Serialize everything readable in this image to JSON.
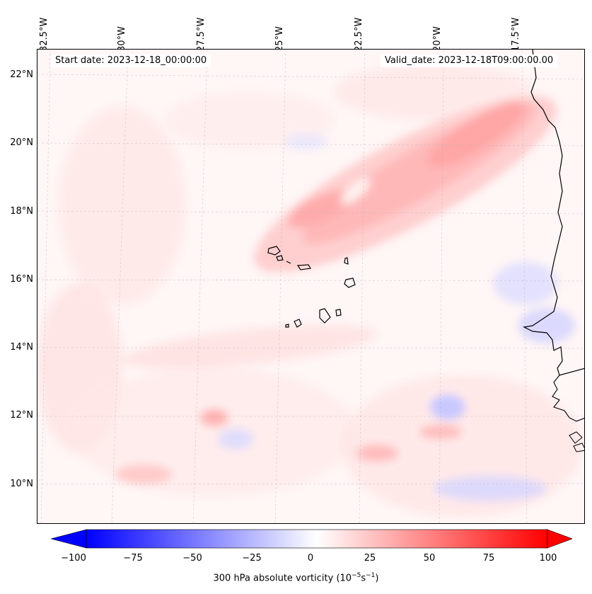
{
  "header": {
    "start_date": "Start date: 2023-12-18_00:00:00",
    "valid_date": "Valid_date: 2023-12-18T09:00:00.00"
  },
  "axes": {
    "longitude_labels": [
      "32.5°W",
      "30°W",
      "27.5°W",
      "25°W",
      "22.5°W",
      "20°W",
      "17.5°W"
    ],
    "latitude_labels": [
      "22°N",
      "20°N",
      "18°N",
      "16°N",
      "14°N",
      "12°N",
      "10°N"
    ]
  },
  "colorbar": {
    "ticks": [
      "−100",
      "−75",
      "−50",
      "−25",
      "0",
      "25",
      "50",
      "75",
      "100"
    ],
    "label": "300 hPa absolute vorticity (10",
    "label_exp1": "−5",
    "label_mid": "s",
    "label_exp2": "−1",
    "label_end": ")",
    "min": -100,
    "max": 100,
    "colormap": "bwr",
    "colors": {
      "neg": "#0000ff",
      "zero": "#ffffff",
      "pos": "#ff0000"
    }
  },
  "map": {
    "region": "Cape Verde / West Africa coast",
    "land_outline_color": "#000000",
    "grid": true
  }
}
